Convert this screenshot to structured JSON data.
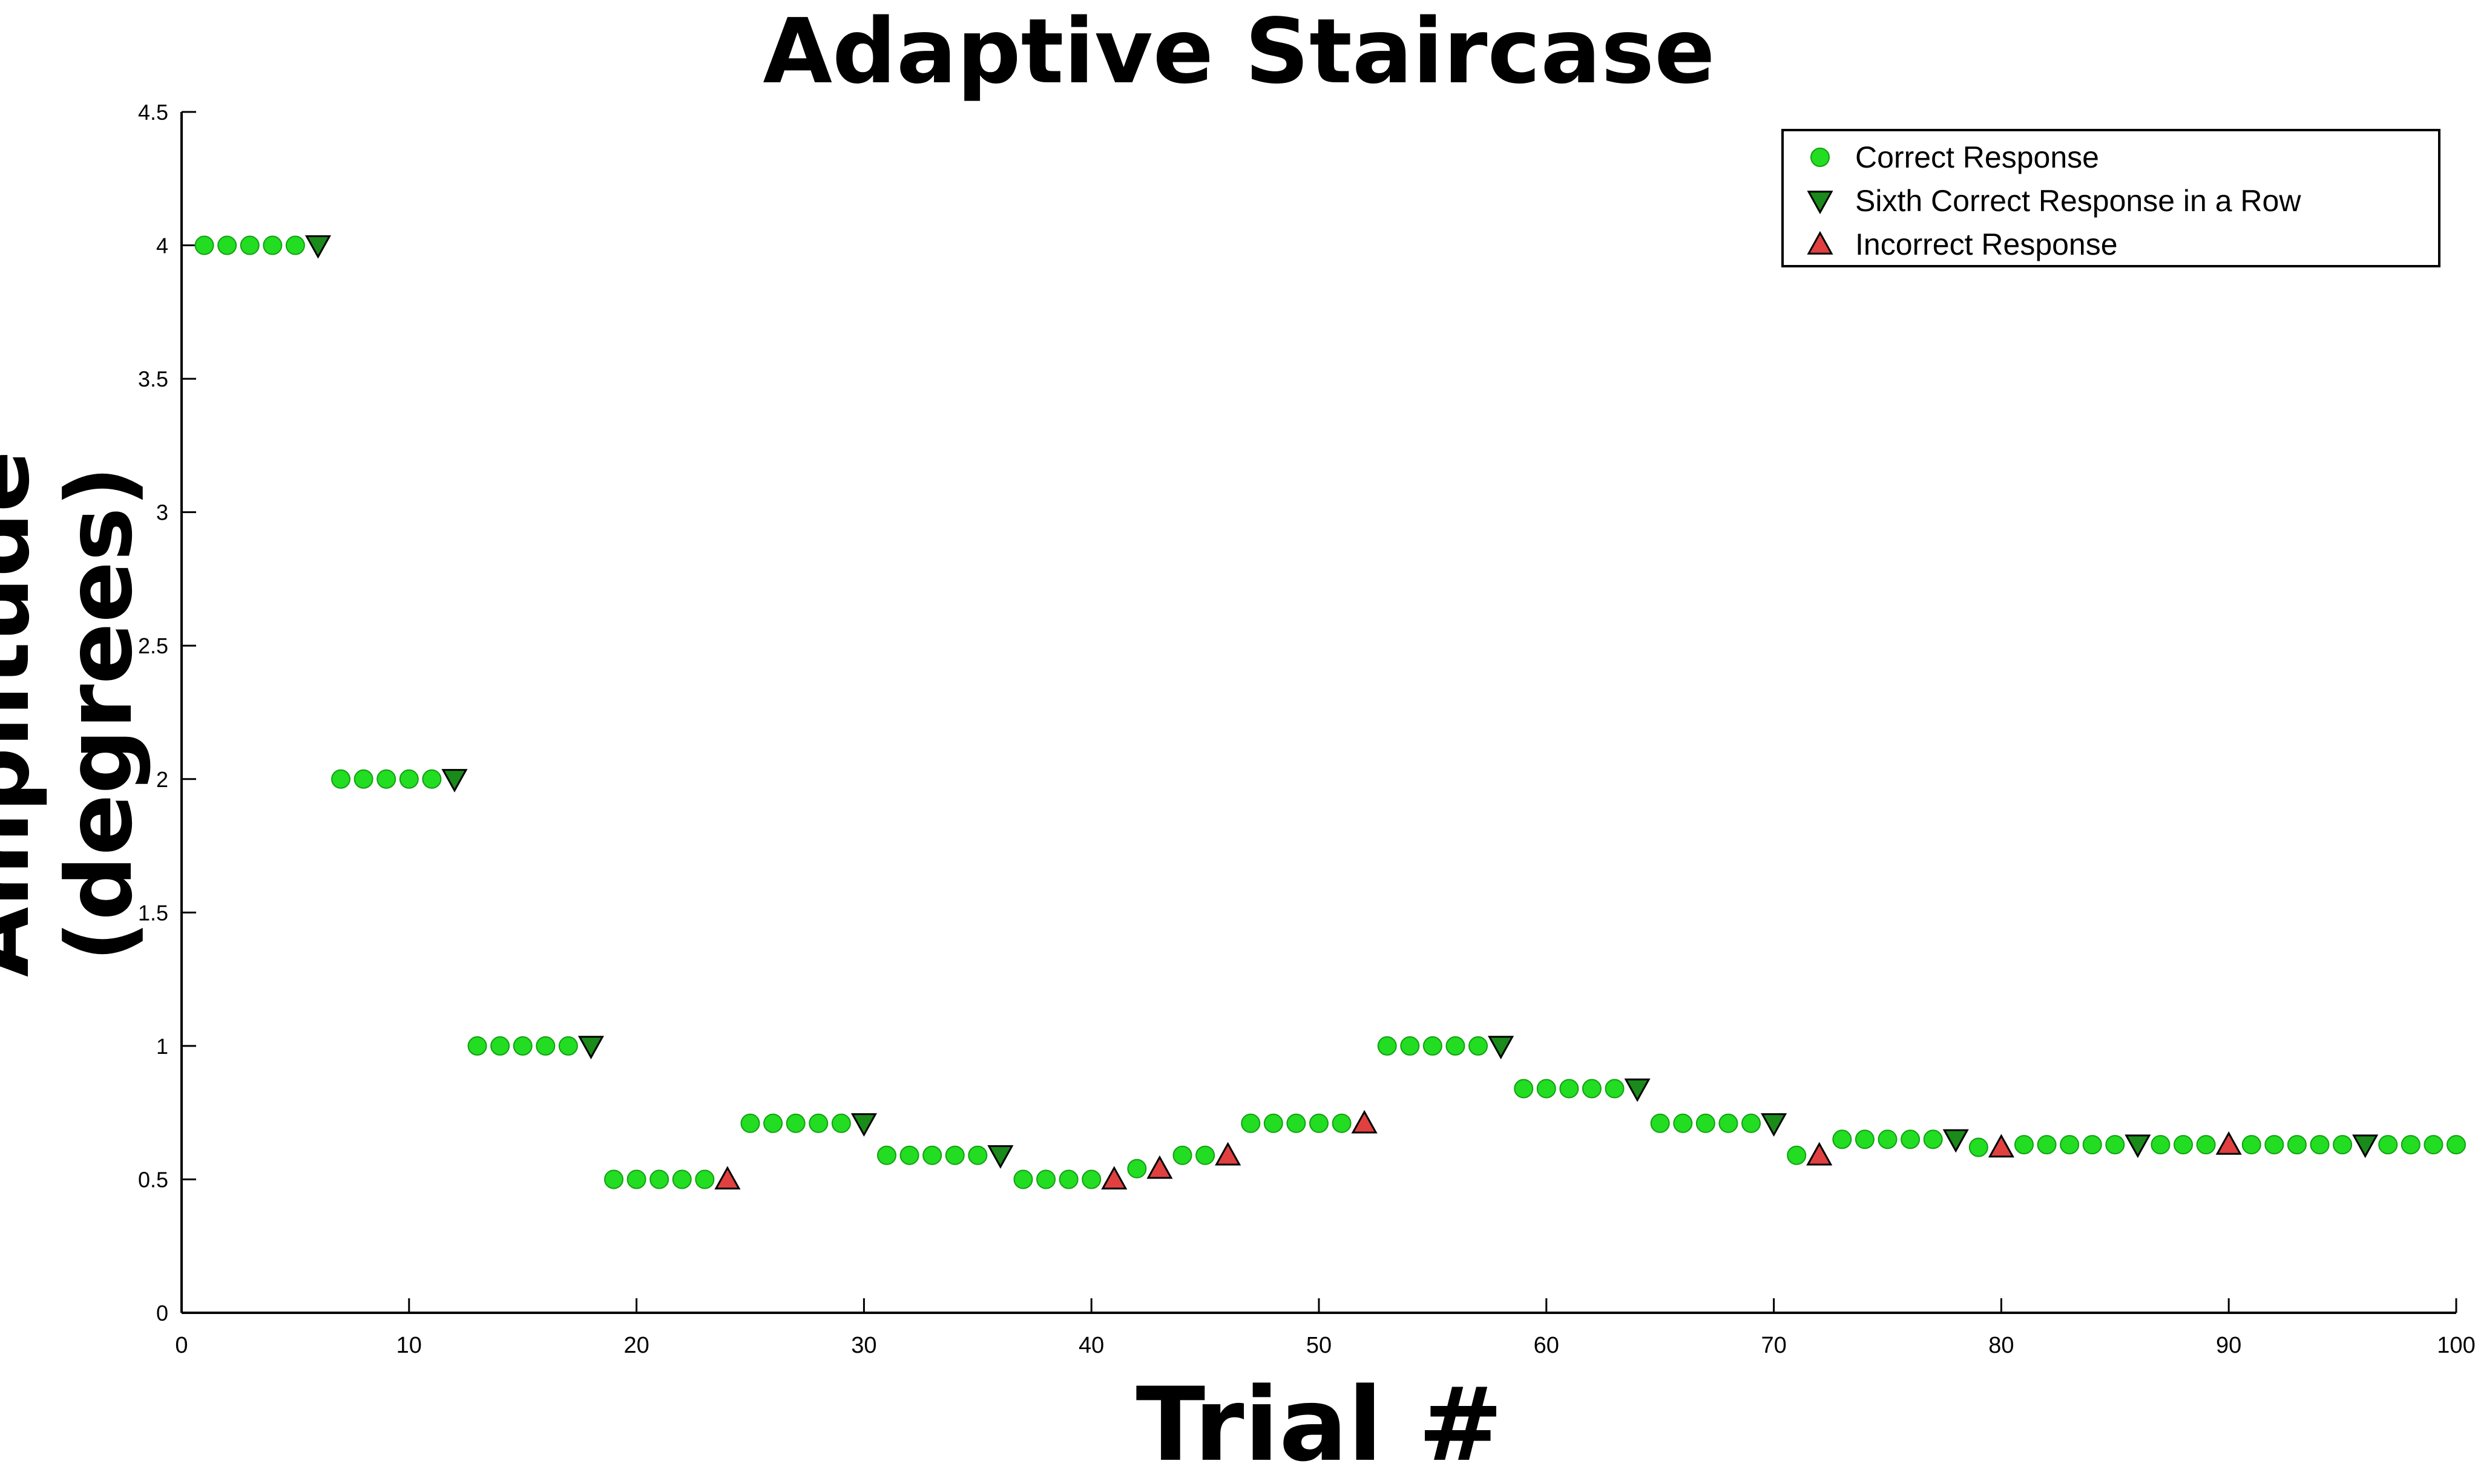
{
  "chart_data": {
    "type": "scatter",
    "title": "Adaptive Staircase",
    "xlabel": "Trial #",
    "ylabel": "Amplitude (degrees)",
    "xlim": [
      0,
      100
    ],
    "ylim": [
      0,
      4.5
    ],
    "xticks": [
      "0",
      "10",
      "20",
      "30",
      "40",
      "50",
      "60",
      "70",
      "80",
      "90",
      "100"
    ],
    "yticks": [
      "0",
      "0.5",
      "1",
      "1.5",
      "2",
      "2.5",
      "3",
      "3.5",
      "4",
      "4.5"
    ],
    "grid": false,
    "legend_position": "top-right",
    "series": [
      {
        "name": "Correct Response",
        "marker": "circle",
        "color": "#22dd22",
        "points": [
          [
            1,
            4
          ],
          [
            2,
            4
          ],
          [
            3,
            4
          ],
          [
            4,
            4
          ],
          [
            5,
            4
          ],
          [
            7,
            2
          ],
          [
            8,
            2
          ],
          [
            9,
            2
          ],
          [
            10,
            2
          ],
          [
            11,
            2
          ],
          [
            13,
            1
          ],
          [
            14,
            1
          ],
          [
            15,
            1
          ],
          [
            16,
            1
          ],
          [
            17,
            1
          ],
          [
            19,
            0.5
          ],
          [
            20,
            0.5
          ],
          [
            21,
            0.5
          ],
          [
            22,
            0.5
          ],
          [
            23,
            0.5
          ],
          [
            25,
            0.71
          ],
          [
            26,
            0.71
          ],
          [
            27,
            0.71
          ],
          [
            28,
            0.71
          ],
          [
            29,
            0.71
          ],
          [
            31,
            0.59
          ],
          [
            32,
            0.59
          ],
          [
            33,
            0.59
          ],
          [
            34,
            0.59
          ],
          [
            35,
            0.59
          ],
          [
            37,
            0.5
          ],
          [
            38,
            0.5
          ],
          [
            39,
            0.5
          ],
          [
            40,
            0.5
          ],
          [
            42,
            0.54
          ],
          [
            44,
            0.59
          ],
          [
            45,
            0.59
          ],
          [
            47,
            0.71
          ],
          [
            48,
            0.71
          ],
          [
            49,
            0.71
          ],
          [
            50,
            0.71
          ],
          [
            51,
            0.71
          ],
          [
            53,
            1
          ],
          [
            54,
            1
          ],
          [
            55,
            1
          ],
          [
            56,
            1
          ],
          [
            57,
            1
          ],
          [
            59,
            0.84
          ],
          [
            60,
            0.84
          ],
          [
            61,
            0.84
          ],
          [
            62,
            0.84
          ],
          [
            63,
            0.84
          ],
          [
            65,
            0.71
          ],
          [
            66,
            0.71
          ],
          [
            67,
            0.71
          ],
          [
            68,
            0.71
          ],
          [
            69,
            0.71
          ],
          [
            71,
            0.59
          ],
          [
            73,
            0.65
          ],
          [
            74,
            0.65
          ],
          [
            75,
            0.65
          ],
          [
            76,
            0.65
          ],
          [
            77,
            0.65
          ],
          [
            79,
            0.62
          ],
          [
            81,
            0.63
          ],
          [
            82,
            0.63
          ],
          [
            83,
            0.63
          ],
          [
            84,
            0.63
          ],
          [
            85,
            0.63
          ],
          [
            87,
            0.63
          ],
          [
            88,
            0.63
          ],
          [
            89,
            0.63
          ],
          [
            91,
            0.63
          ],
          [
            92,
            0.63
          ],
          [
            93,
            0.63
          ],
          [
            94,
            0.63
          ],
          [
            95,
            0.63
          ],
          [
            97,
            0.63
          ],
          [
            98,
            0.63
          ],
          [
            99,
            0.63
          ],
          [
            100,
            0.63
          ]
        ]
      },
      {
        "name": "Sixth Correct Response in a Row",
        "marker": "triangle-down",
        "color": "#1a8a1a",
        "points": [
          [
            6,
            4
          ],
          [
            12,
            2
          ],
          [
            18,
            1
          ],
          [
            30,
            0.71
          ],
          [
            36,
            0.59
          ],
          [
            58,
            1
          ],
          [
            64,
            0.84
          ],
          [
            70,
            0.71
          ],
          [
            78,
            0.65
          ],
          [
            86,
            0.63
          ],
          [
            96,
            0.63
          ]
        ]
      },
      {
        "name": "Incorrect Response",
        "marker": "triangle-up",
        "color": "#e04040",
        "points": [
          [
            24,
            0.5
          ],
          [
            41,
            0.5
          ],
          [
            43,
            0.54
          ],
          [
            46,
            0.59
          ],
          [
            52,
            0.71
          ],
          [
            72,
            0.59
          ],
          [
            80,
            0.62
          ],
          [
            90,
            0.63
          ]
        ]
      }
    ]
  }
}
